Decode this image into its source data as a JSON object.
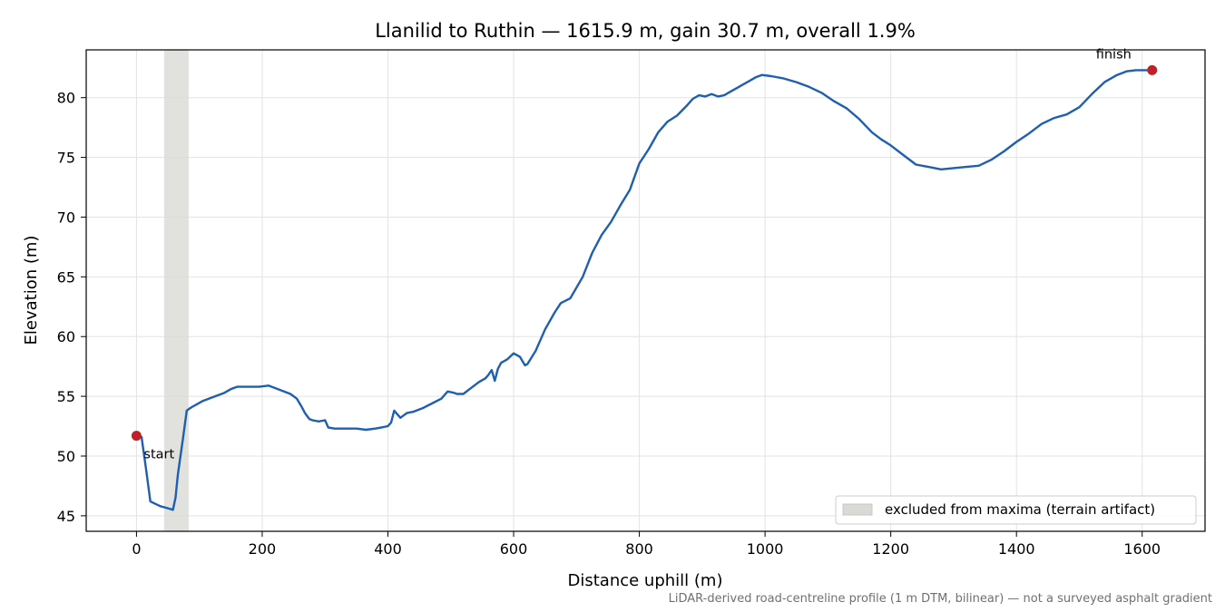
{
  "chart_data": {
    "type": "line",
    "title": "Llanilid to Ruthin — 1615.9 m, gain 30.7 m, overall 1.9%",
    "xlabel": "Distance uphill (m)",
    "ylabel": "Elevation (m)",
    "xlim": [
      -80,
      1700
    ],
    "ylim": [
      43.7,
      84
    ],
    "xticks": [
      0,
      200,
      400,
      600,
      800,
      1000,
      1200,
      1400,
      1600
    ],
    "yticks": [
      45,
      50,
      55,
      60,
      65,
      70,
      75,
      80
    ],
    "grid": true,
    "legend_position": "lower-right",
    "line_color": "#1f5fb0",
    "marker_color": "#c0202a",
    "band_color": "#d9d9d6",
    "excluded_band": {
      "x_start": 44,
      "x_end": 83,
      "label": "excluded from maxima (terrain artifact)"
    },
    "series": [
      {
        "x": [
          0,
          8,
          15,
          22,
          30,
          38,
          45,
          52,
          58,
          62,
          66,
          70,
          74,
          80,
          85,
          88,
          95,
          105,
          115,
          125,
          140,
          150,
          160,
          170,
          180,
          195,
          210,
          220,
          230,
          245,
          255,
          262,
          268,
          275,
          280,
          290,
          300,
          305,
          315,
          330,
          350,
          365,
          380,
          390,
          400,
          405,
          410,
          415,
          420,
          425,
          430,
          440,
          455,
          470,
          485,
          495,
          505,
          510,
          520,
          530,
          545,
          555,
          560,
          565,
          570,
          575,
          580,
          590,
          600,
          610,
          618,
          622,
          628,
          635,
          650,
          665,
          675,
          690,
          710,
          725,
          740,
          755,
          770,
          785,
          800,
          815,
          830,
          845,
          860,
          875,
          885,
          895,
          905,
          915,
          925,
          935,
          945,
          955,
          965,
          975,
          985,
          995,
          1010,
          1030,
          1050,
          1070,
          1090,
          1110,
          1130,
          1150,
          1170,
          1185,
          1200,
          1220,
          1240,
          1260,
          1280,
          1300,
          1320,
          1340,
          1360,
          1380,
          1400,
          1420,
          1440,
          1460,
          1480,
          1500,
          1520,
          1540,
          1560,
          1575,
          1590,
          1605,
          1615.9
        ],
        "y": [
          51.7,
          51.6,
          49.0,
          46.2,
          46.0,
          45.8,
          45.7,
          45.6,
          45.5,
          46.5,
          48.5,
          50.0,
          51.5,
          53.8,
          54.0,
          54.1,
          54.3,
          54.6,
          54.8,
          55.0,
          55.3,
          55.6,
          55.8,
          55.8,
          55.8,
          55.8,
          55.9,
          55.7,
          55.5,
          55.2,
          54.8,
          54.2,
          53.6,
          53.1,
          53.0,
          52.9,
          53.0,
          52.4,
          52.3,
          52.3,
          52.3,
          52.2,
          52.3,
          52.4,
          52.5,
          52.8,
          53.8,
          53.5,
          53.2,
          53.4,
          53.6,
          53.7,
          54.0,
          54.4,
          54.8,
          55.4,
          55.3,
          55.2,
          55.2,
          55.6,
          56.2,
          56.5,
          56.8,
          57.2,
          56.3,
          57.3,
          57.8,
          58.1,
          58.6,
          58.3,
          57.6,
          57.7,
          58.2,
          58.8,
          60.6,
          62.0,
          62.8,
          63.2,
          65.0,
          67.0,
          68.5,
          69.6,
          71.0,
          72.3,
          74.5,
          75.7,
          77.1,
          78.0,
          78.5,
          79.3,
          79.9,
          80.2,
          80.1,
          80.3,
          80.1,
          80.2,
          80.5,
          80.8,
          81.1,
          81.4,
          81.7,
          81.9,
          81.8,
          81.6,
          81.3,
          80.9,
          80.4,
          79.7,
          79.1,
          78.2,
          77.1,
          76.5,
          76.0,
          75.2,
          74.4,
          74.2,
          74.0,
          74.1,
          74.2,
          74.3,
          74.8,
          75.5,
          76.3,
          77.0,
          77.8,
          78.3,
          78.6,
          79.2,
          80.3,
          81.3,
          81.9,
          82.2,
          82.3,
          82.3,
          82.3
        ]
      }
    ],
    "annotations": [
      {
        "text": "start",
        "x": 0,
        "y": 51.7
      },
      {
        "text": "finish",
        "x": 1615.9,
        "y": 82.3
      }
    ],
    "footnote": "LiDAR-derived road-centreline profile (1 m DTM, bilinear) — not a surveyed asphalt gradient"
  }
}
